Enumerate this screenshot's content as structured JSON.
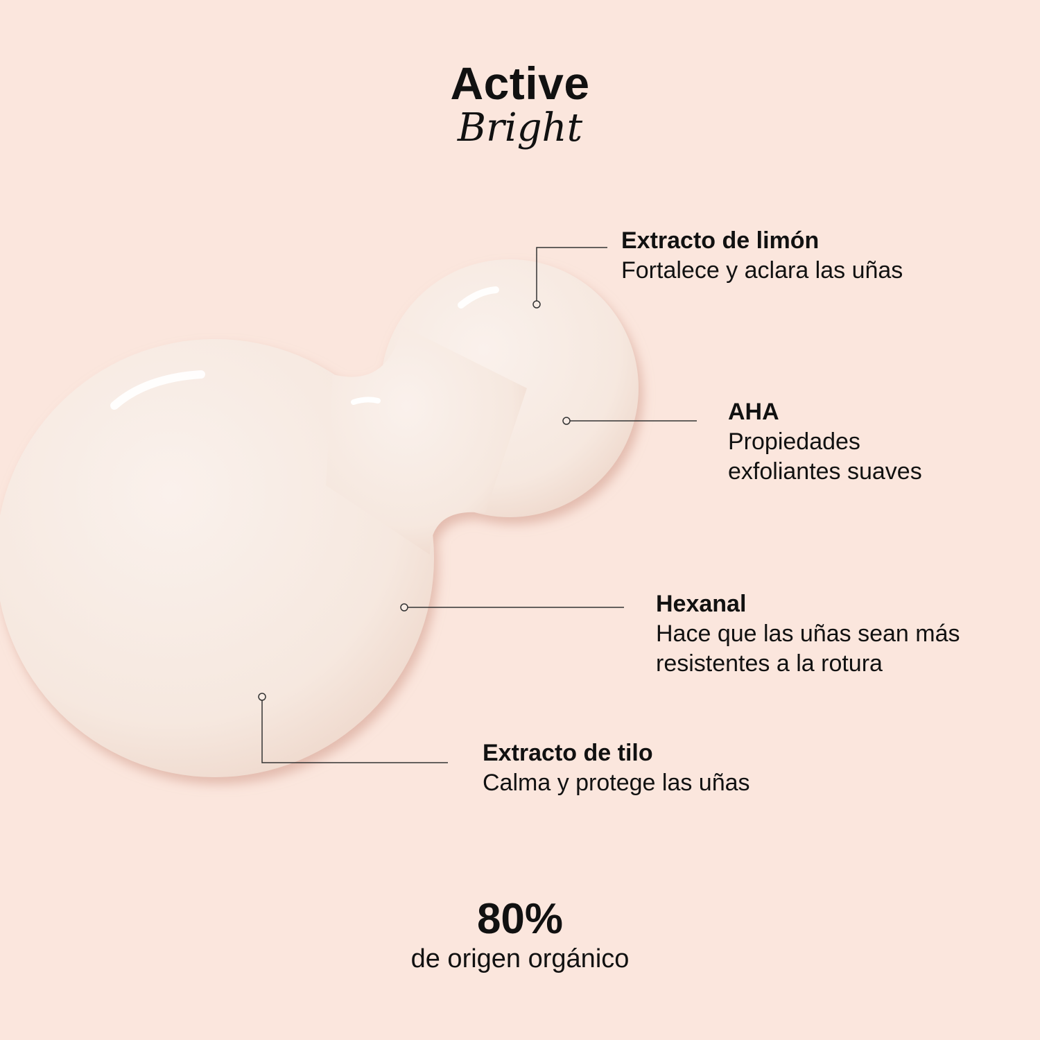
{
  "header": {
    "title": "Active",
    "subtitle": "Bright"
  },
  "ingredients": [
    {
      "name": "Extracto de limón",
      "description": "Fortalece y aclara las uñas"
    },
    {
      "name": "AHA",
      "description": "Propiedades\nexfoliantes suaves"
    },
    {
      "name": "Hexanal",
      "description": "Hace que las uñas sean más\nresistentes a la rotura"
    },
    {
      "name": "Extracto de tilo",
      "description": "Calma y protege las uñas"
    }
  ],
  "footer": {
    "stat": "80%",
    "stat_label": "de origen orgánico"
  },
  "colors": {
    "background": "#fbe6dd",
    "blob": "#f8ece4",
    "text": "#111111",
    "line": "#333333"
  }
}
